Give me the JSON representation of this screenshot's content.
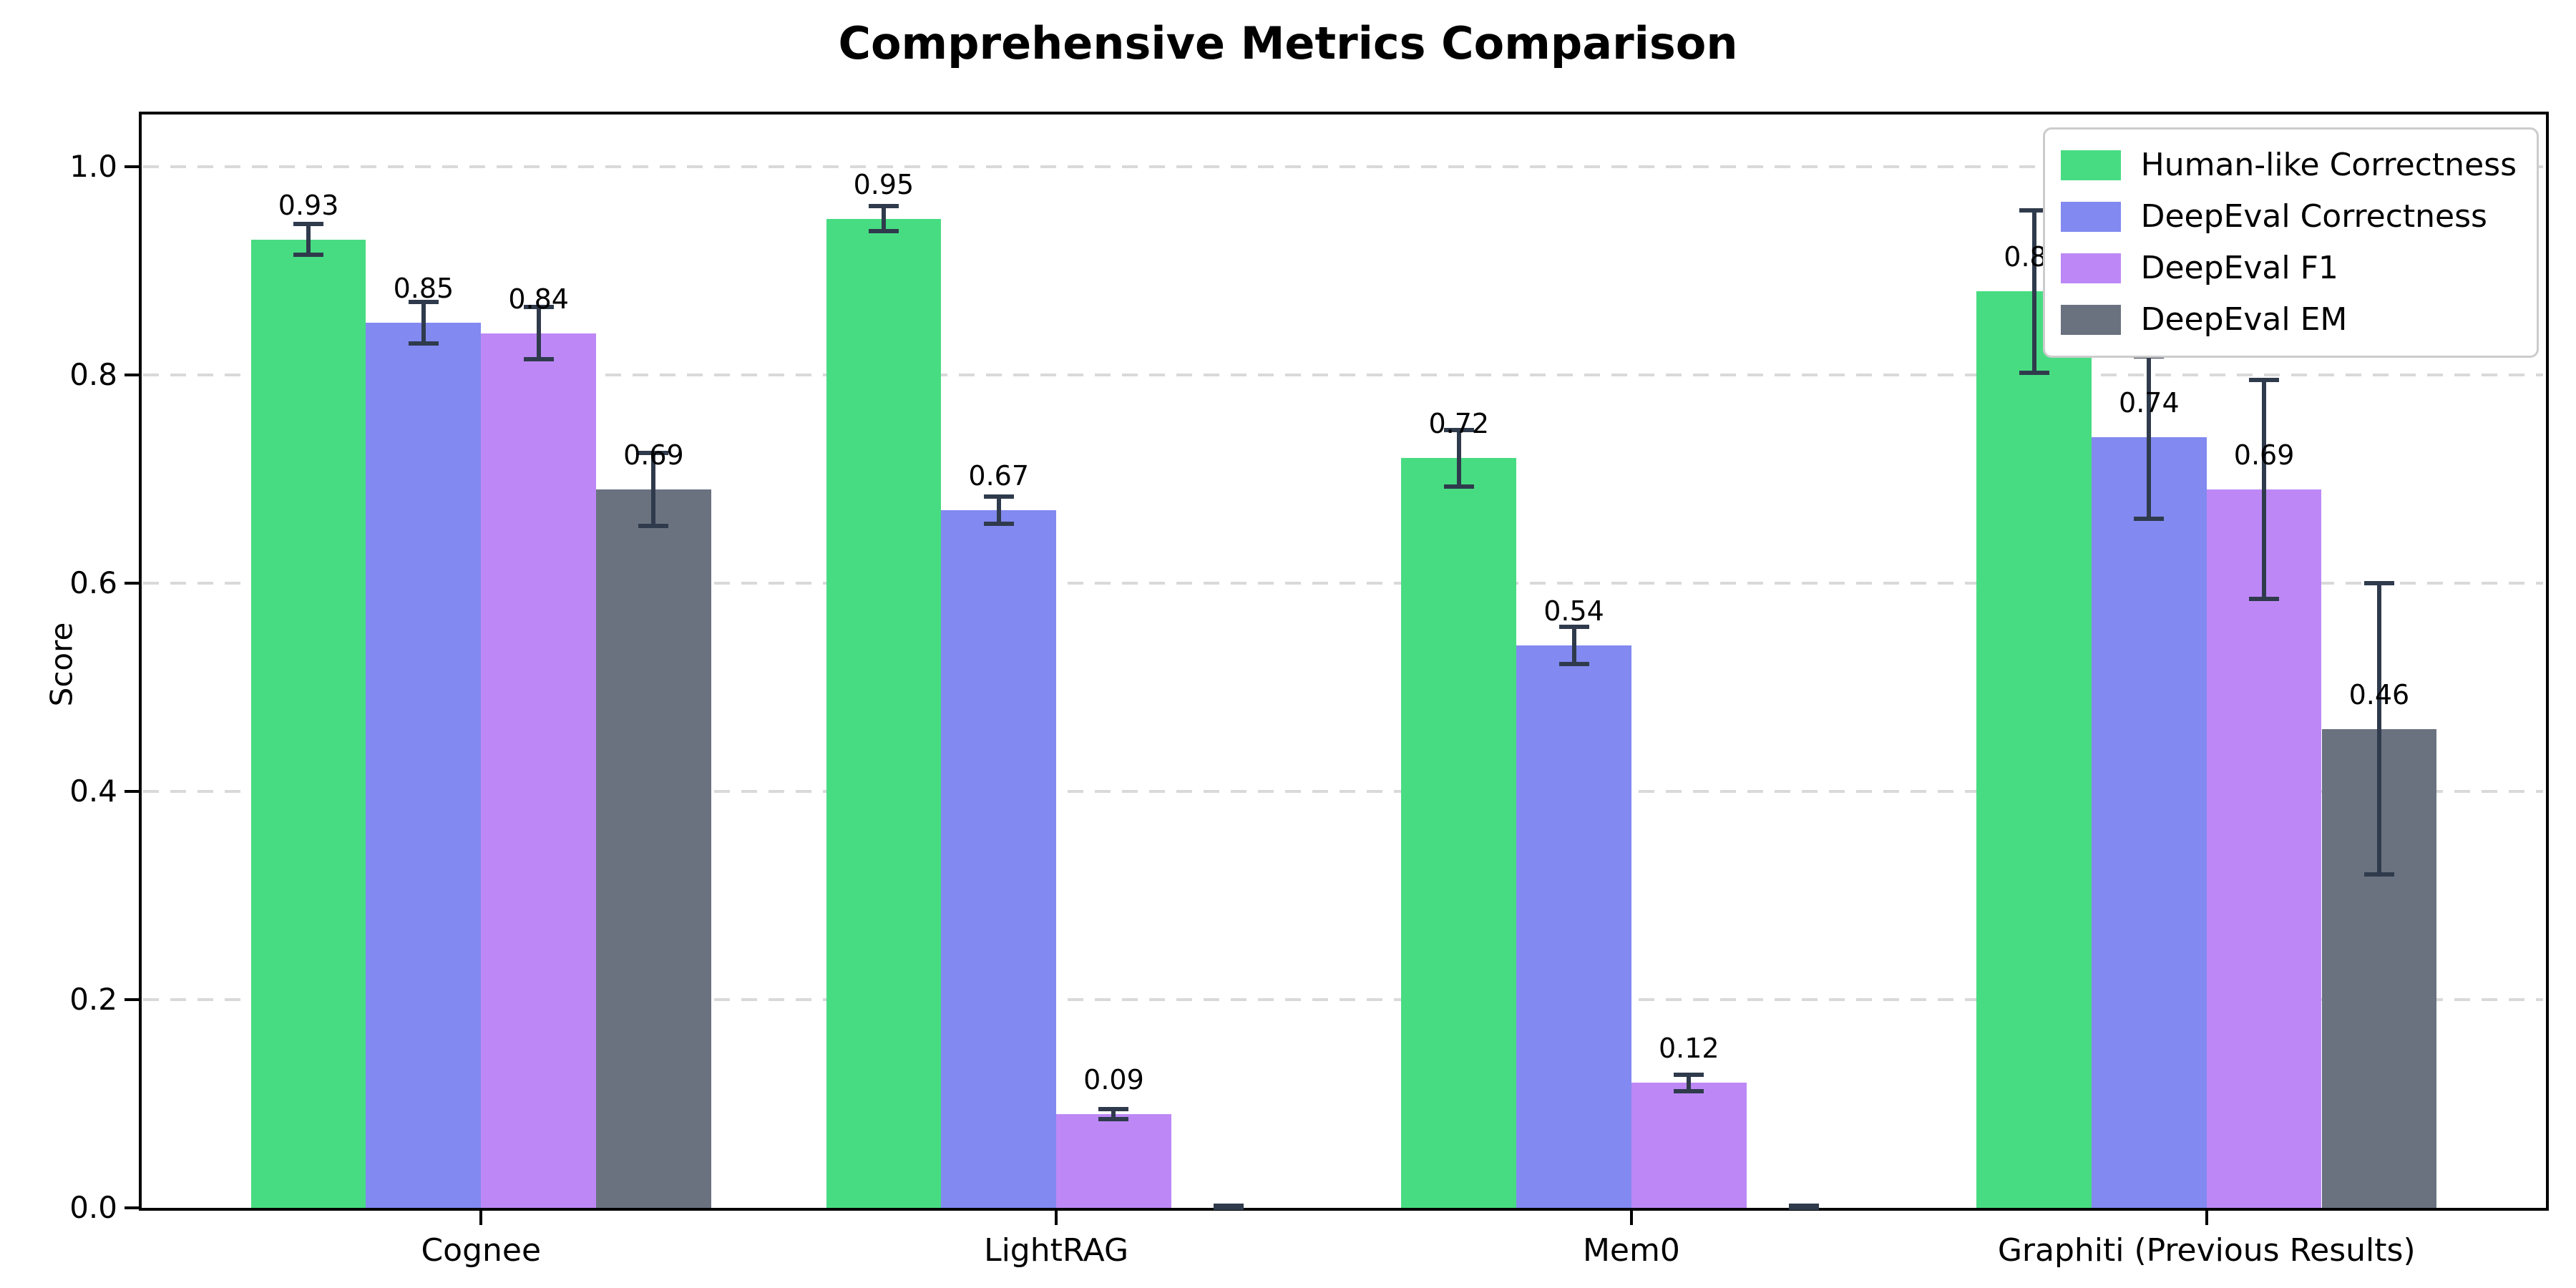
{
  "title": "Comprehensive Metrics Comparison",
  "chart_data": {
    "type": "bar",
    "title": "Comprehensive Metrics Comparison",
    "xlabel": "",
    "ylabel": "Score",
    "ylim": [
      0.0,
      1.05
    ],
    "yticks": [
      0.0,
      0.2,
      0.4,
      0.6,
      0.8,
      1.0
    ],
    "yticklabels": [
      "0.0",
      "0.2",
      "0.4",
      "0.6",
      "0.8",
      "1.0"
    ],
    "grid": "horizontal dashed gridlines",
    "grid_color": "#d9d9d9",
    "legend_position": "upper right",
    "error_bar_color": "#2F3B4C",
    "categories": [
      "Cognee",
      "LightRAG",
      "Mem0",
      "Graphiti (Previous Results)"
    ],
    "series": [
      {
        "name": "Human-like Correctness",
        "color": "#48DC82",
        "values": [
          0.93,
          0.95,
          0.72,
          0.88
        ],
        "errors": [
          0.015,
          0.012,
          0.027,
          0.078
        ],
        "labels": [
          "0.93",
          "0.95",
          "0.72",
          "0.88"
        ]
      },
      {
        "name": "DeepEval Correctness",
        "color": "#8289F0",
        "values": [
          0.85,
          0.67,
          0.54,
          0.74
        ],
        "errors": [
          0.02,
          0.013,
          0.018,
          0.078
        ],
        "labels": [
          "0.85",
          "0.67",
          "0.54",
          "0.74"
        ]
      },
      {
        "name": "DeepEval F1",
        "color": "#BD88F6",
        "values": [
          0.84,
          0.09,
          0.12,
          0.69
        ],
        "errors": [
          0.025,
          0.005,
          0.008,
          0.105
        ],
        "labels": [
          "0.84",
          "0.09",
          "0.12",
          "0.69"
        ]
      },
      {
        "name": "DeepEval EM",
        "color": "#6A7280",
        "values": [
          0.69,
          0.0,
          0.0,
          0.46
        ],
        "errors": [
          0.035,
          0.002,
          0.002,
          0.14
        ],
        "labels": [
          "0.69",
          null,
          null,
          "0.46"
        ]
      }
    ]
  }
}
